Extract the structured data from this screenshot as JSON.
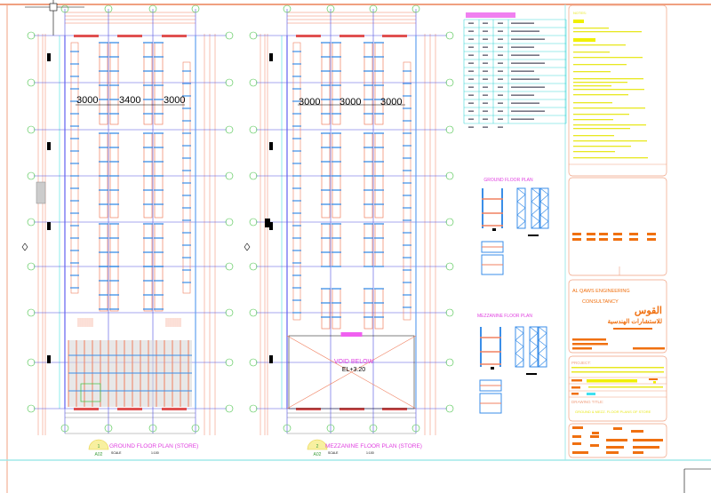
{
  "colors": {
    "wall": "#f08060",
    "grid": "#5050e0",
    "rack": "#3a8ee8",
    "bubble": "#40c040",
    "title": "#e040e0",
    "frame": "#f0a080",
    "note": "#e8e820",
    "brand": "#f07010",
    "table": "#40d8d8"
  },
  "ground_plan": {
    "dimensions": [
      "3000",
      "3400",
      "3000"
    ],
    "title": "GROUND FLOOR PLAN (STORE)",
    "scale_label": "SCALE",
    "scale_value": "1:100",
    "ref_number": "1",
    "ref_sheet": "A02"
  },
  "mezzanine_plan": {
    "dimensions": [
      "3000",
      "3000",
      "3000"
    ],
    "title": "MEZZANINE FLOOR PLAN (STORE)",
    "scale_label": "SCALE",
    "scale_value": "1:100",
    "ref_number": "2",
    "ref_sheet": "A02",
    "void_label": "VOID BELOW",
    "void_level": "EL+3.20"
  },
  "details": {
    "ground_title": "GROUND FLOOR PLAN",
    "mezzanine_title": "MEZZANINE FLOOR PLAN"
  },
  "notes": {
    "heading": "NOTES:"
  },
  "title_block": {
    "company_en_line1": "AL QAWS ENGINEERING",
    "company_en_line2": "CONSULTANCY",
    "company_ar_line1": "القوس",
    "company_ar_line2": "للاستشارات الهندسية",
    "project_label": "PROJECT:",
    "drawing_title_label": "DRAWING TITLE:",
    "drawing_title": "GROUND & MEZZ. FLOOR PLANS OF STORE"
  }
}
